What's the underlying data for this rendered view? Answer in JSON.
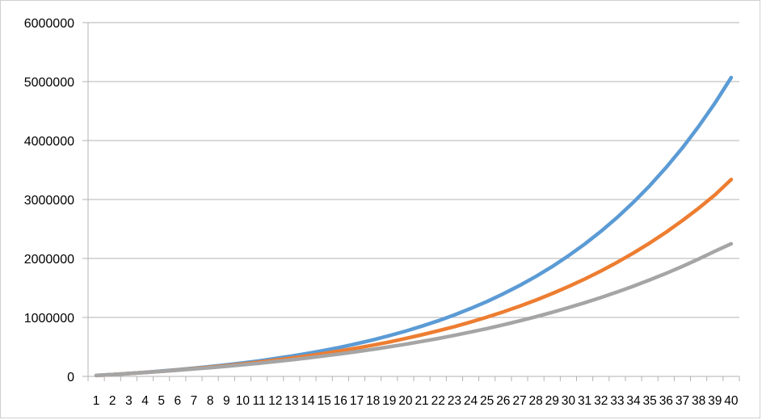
{
  "chart_data": {
    "type": "line",
    "title": "",
    "xlabel": "",
    "ylabel": "",
    "categories": [
      1,
      2,
      3,
      4,
      5,
      6,
      7,
      8,
      9,
      10,
      11,
      12,
      13,
      14,
      15,
      16,
      17,
      18,
      19,
      20,
      21,
      22,
      23,
      24,
      25,
      26,
      27,
      28,
      29,
      30,
      31,
      32,
      33,
      34,
      35,
      36,
      37,
      38,
      39,
      40
    ],
    "ylim": [
      0,
      6000000
    ],
    "yticks": [
      0,
      1000000,
      2000000,
      3000000,
      4000000,
      5000000,
      6000000
    ],
    "grid": "horizontal",
    "legend": "none",
    "series": [
      {
        "color": "#5b9bd5",
        "values": [
          15000,
          31350,
          49167,
          68600,
          89767,
          112850,
          138000,
          165433,
          195317,
          227900,
          263400,
          302117,
          344300,
          390283,
          440417,
          495050,
          554600,
          619517,
          690283,
          767400,
          851467,
          943100,
          1042983,
          1151850,
          1270517,
          1399867,
          1540850,
          1694517,
          1862033,
          2044617,
          2243633,
          2460550,
          2697000,
          2954733,
          3235667,
          3541867,
          3875633,
          4239450,
          4636000,
          5068233
        ]
      },
      {
        "color": "#ed7d31",
        "values": [
          15000,
          31100,
          48400,
          66990,
          86960,
          108400,
          131440,
          156190,
          182770,
          211320,
          241950,
          274850,
          310070,
          348020,
          388760,
          432520,
          479530,
          530020,
          584240,
          642480,
          705010,
          772190,
          844330,
          921800,
          1004980,
          1094350,
          1190350,
          1293420,
          1404140,
          1523060,
          1650760,
          1787930,
          1935230,
          2093440,
          2263370,
          2445860,
          2641850,
          2852360,
          3078430,
          3340000
        ]
      },
      {
        "color": "#a5a5a5",
        "values": [
          15000,
          30890,
          47690,
          65510,
          84380,
          104360,
          125510,
          147910,
          171630,
          196770,
          223370,
          251560,
          281410,
          313010,
          346470,
          381910,
          419440,
          459200,
          501270,
          545870,
          593080,
          643060,
          696000,
          752080,
          811450,
          874320,
          940900,
          1011430,
          1086100,
          1165170,
          1248920,
          1337620,
          1431530,
          1530990,
          1636320,
          1747860,
          1865970,
          1991080,
          2123560,
          2250000
        ]
      }
    ]
  }
}
